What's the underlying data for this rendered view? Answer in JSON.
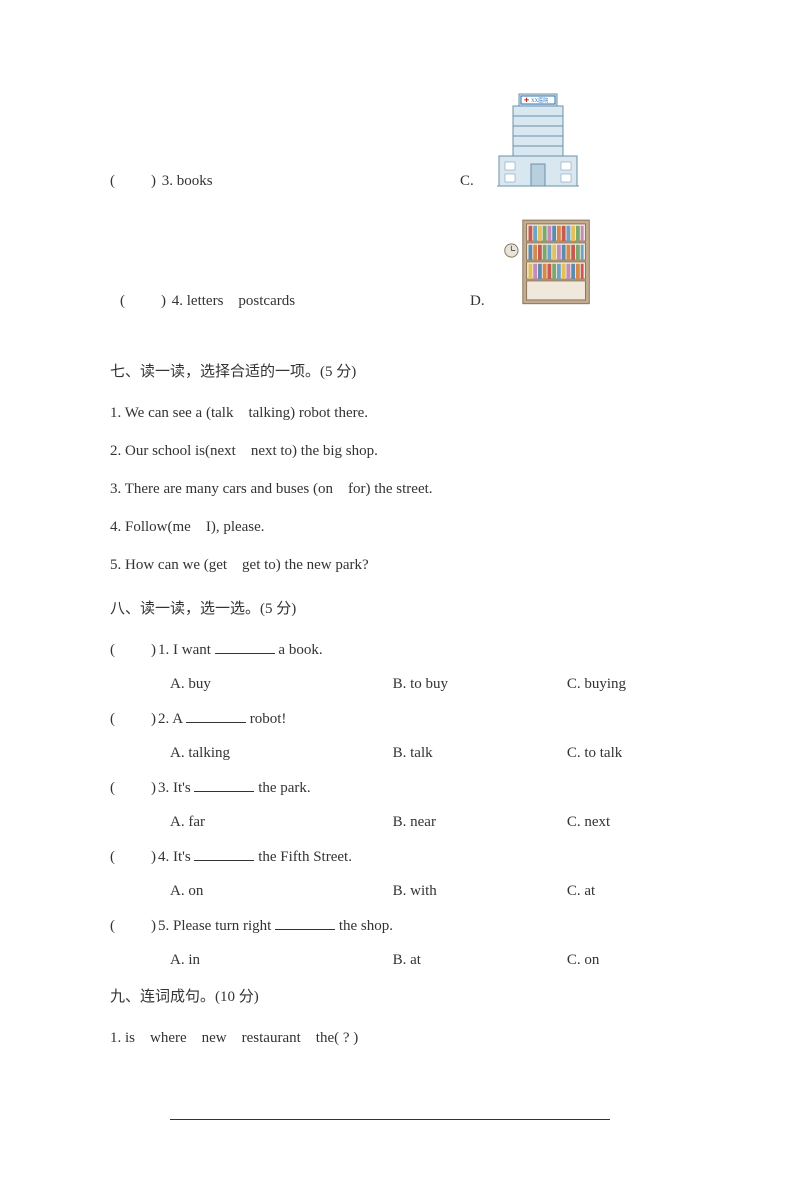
{
  "match": {
    "items": [
      {
        "paren": "(　　)",
        "num": "3.",
        "word": "books",
        "letter": "C."
      },
      {
        "paren": "(　　)",
        "num": "4.",
        "words": "letters　postcards",
        "letter": "D."
      }
    ]
  },
  "section7": {
    "heading": "七、读一读，选择合适的一项。(5 分)",
    "lines": [
      "1. We can see a (talk　talking) robot there.",
      "2. Our school is(next　next to) the big shop.",
      "3. There are many cars and buses (on　for) the street.",
      "4. Follow(me　I), please.",
      "5. How can we (get　get to) the new park?"
    ]
  },
  "section8": {
    "heading": "八、读一读，选一选。(5 分)",
    "questions": [
      {
        "paren": "(　　)",
        "num": "1.",
        "stem_pre": "I want ",
        "stem_post": " a book.",
        "a": "A. buy",
        "b": "B. to buy",
        "c": "C. buying"
      },
      {
        "paren": "(　　)",
        "num": "2.",
        "stem_pre": "A ",
        "stem_post": " robot!",
        "a": "A. talking",
        "b": "B. talk",
        "c": "C. to talk"
      },
      {
        "paren": "(　　)",
        "num": "3.",
        "stem_pre": "It's ",
        "stem_post": " the park.",
        "a": "A. far",
        "b": "B. near",
        "c": "C. next"
      },
      {
        "paren": "(　　)",
        "num": "4.",
        "stem_pre": "It's ",
        "stem_post": " the Fifth Street.",
        "a": "A. on",
        "b": "B. with",
        "c": "C. at"
      },
      {
        "paren": "(　　)",
        "num": "5.",
        "stem_pre": "Please turn right ",
        "stem_post": " the shop.",
        "a": "A. in",
        "b": "B. at",
        "c": "C. on"
      }
    ]
  },
  "section9": {
    "heading": "九、连词成句。(10 分)",
    "q1": "1. is　where　new　restaurant　the( ? )"
  },
  "colors": {
    "text": "#333333",
    "bg": "#ffffff",
    "hospital_wall": "#d9e8f0",
    "hospital_outline": "#6a90a8",
    "hospital_sign_border": "#2b6fb5",
    "shelf_frame": "#c2ab90",
    "shelf_outline": "#8b7355",
    "clock_face": "#e8e4dc",
    "books": [
      "#c75b54",
      "#6da3c7",
      "#e2c15a",
      "#7aa86f",
      "#c28bb8",
      "#5d8bb0",
      "#d68a4a"
    ]
  }
}
